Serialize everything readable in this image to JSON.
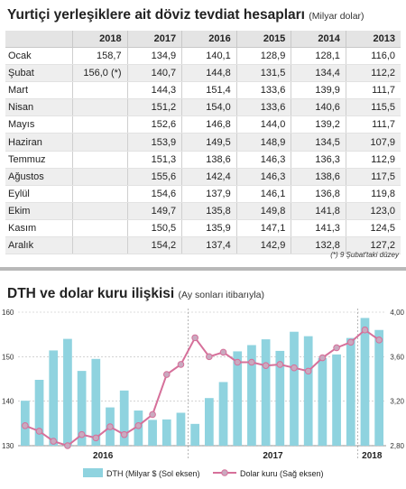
{
  "table": {
    "title": "Yurtiçi yerleşiklere ait döviz tevdiat hesapları",
    "unit": "(Milyar dolar)",
    "columns": [
      "",
      "2018",
      "2017",
      "2016",
      "2015",
      "2014",
      "2013"
    ],
    "rows": [
      [
        "Ocak",
        "158,7",
        "134,9",
        "140,1",
        "128,9",
        "128,1",
        "116,0"
      ],
      [
        "Şubat",
        "156,0 (*)",
        "140,7",
        "144,8",
        "131,5",
        "134,4",
        "112,2"
      ],
      [
        "Mart",
        "",
        "144,3",
        "151,4",
        "133,6",
        "139,9",
        "111,7"
      ],
      [
        "Nisan",
        "",
        "151,2",
        "154,0",
        "133,6",
        "140,6",
        "115,5"
      ],
      [
        "Mayıs",
        "",
        "152,6",
        "146,8",
        "144,0",
        "139,2",
        "111,7"
      ],
      [
        "Haziran",
        "",
        "153,9",
        "149,5",
        "148,9",
        "134,5",
        "107,9"
      ],
      [
        "Temmuz",
        "",
        "151,3",
        "138,6",
        "146,3",
        "136,3",
        "112,9"
      ],
      [
        "Ağustos",
        "",
        "155,6",
        "142,4",
        "146,3",
        "138,6",
        "117,5"
      ],
      [
        "Eylül",
        "",
        "154,6",
        "137,9",
        "146,1",
        "136,8",
        "119,8"
      ],
      [
        "Ekim",
        "",
        "149,7",
        "135,8",
        "149,8",
        "141,8",
        "123,0"
      ],
      [
        "Kasım",
        "",
        "150,5",
        "135,9",
        "147,1",
        "141,3",
        "124,5"
      ],
      [
        "Aralık",
        "",
        "154,2",
        "137,4",
        "142,9",
        "132,8",
        "127,2"
      ]
    ],
    "footnote": "(*) 9 Şubat'taki düzey"
  },
  "chart": {
    "title": "DTH ve dolar kuru ilişkisi",
    "subtitle": "(Ay sonları itibarıyla)",
    "left_ticks": [
      "130",
      "140",
      "150",
      "160"
    ],
    "right_ticks": [
      "2,80",
      "3,20",
      "3,60",
      "4,00"
    ],
    "year_labels": [
      "2016",
      "2017",
      "2018"
    ],
    "legend": {
      "bars": "DTH (Milyar $ (Sol eksen)",
      "line": "Dolar kuru (Sağ eksen)"
    },
    "colors": {
      "bars": "#8fd3df",
      "line": "#d6709a",
      "marker": "#c9a9bf",
      "grid": "#b9b9b9"
    }
  },
  "chart_data": {
    "type": "bar",
    "x": [
      "2016-01",
      "2016-02",
      "2016-03",
      "2016-04",
      "2016-05",
      "2016-06",
      "2016-07",
      "2016-08",
      "2016-09",
      "2016-10",
      "2016-11",
      "2016-12",
      "2017-01",
      "2017-02",
      "2017-03",
      "2017-04",
      "2017-05",
      "2017-06",
      "2017-07",
      "2017-08",
      "2017-09",
      "2017-10",
      "2017-11",
      "2017-12",
      "2018-01",
      "2018-02"
    ],
    "series": [
      {
        "name": "DTH (Milyar $ (Sol eksen)",
        "axis": "left",
        "kind": "bar",
        "values": [
          140.1,
          144.8,
          151.4,
          154.0,
          146.8,
          149.5,
          138.6,
          142.4,
          137.9,
          135.8,
          135.9,
          137.4,
          134.9,
          140.7,
          144.3,
          151.2,
          152.6,
          153.9,
          151.3,
          155.6,
          154.6,
          149.7,
          150.5,
          154.2,
          158.7,
          156.0
        ]
      },
      {
        "name": "Dolar kuru (Sağ eksen)",
        "axis": "right",
        "kind": "line",
        "values": [
          2.98,
          2.93,
          2.84,
          2.8,
          2.9,
          2.87,
          2.97,
          2.9,
          2.98,
          3.08,
          3.44,
          3.53,
          3.77,
          3.6,
          3.64,
          3.55,
          3.55,
          3.52,
          3.53,
          3.5,
          3.47,
          3.59,
          3.68,
          3.73,
          3.84,
          3.75
        ]
      }
    ],
    "ylim_left": [
      130,
      160
    ],
    "ylim_right": [
      2.8,
      4.0
    ],
    "xlabel": "",
    "ylabel": "",
    "grid": true,
    "legend_position": "bottom"
  }
}
